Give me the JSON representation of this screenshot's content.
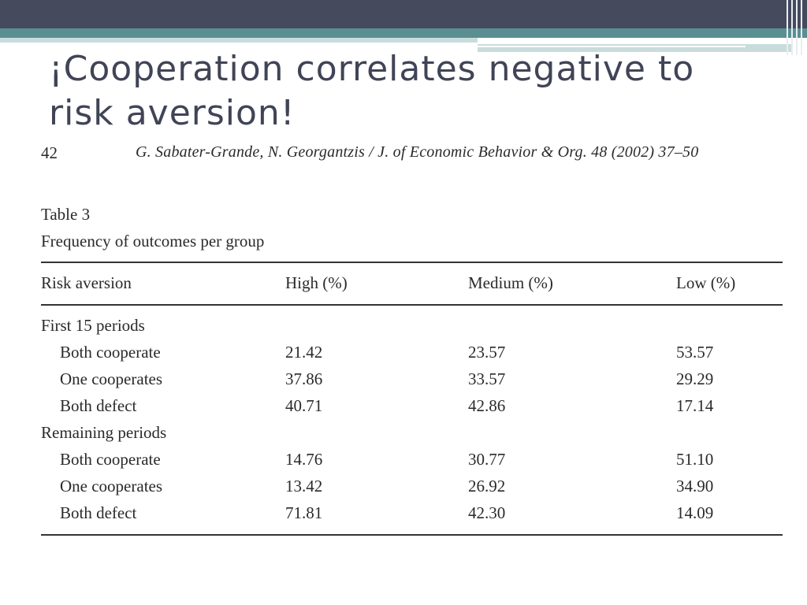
{
  "slide": {
    "title_line1": "¡Cooperation correlates negative to",
    "title_line2": "risk aversion!"
  },
  "scan": {
    "page_number": "42",
    "running_head": "G. Sabater-Grande, N. Georgantzis / J. of Economic Behavior & Org. 48 (2002) 37–50",
    "table_label": "Table 3",
    "table_caption": "Frequency of outcomes per group",
    "headers": [
      "Risk aversion",
      "High (%)",
      "Medium (%)",
      "Low (%)"
    ],
    "sections": [
      {
        "label": "First 15 periods",
        "rows": [
          {
            "outcome": "Both cooperate",
            "high": "21.42",
            "medium": "23.57",
            "low": "53.57"
          },
          {
            "outcome": "One cooperates",
            "high": "37.86",
            "medium": "33.57",
            "low": "29.29"
          },
          {
            "outcome": "Both defect",
            "high": "40.71",
            "medium": "42.86",
            "low": "17.14"
          }
        ]
      },
      {
        "label": "Remaining periods",
        "rows": [
          {
            "outcome": "Both cooperate",
            "high": "14.76",
            "medium": "30.77",
            "low": "51.10"
          },
          {
            "outcome": "One cooperates",
            "high": "13.42",
            "medium": "26.92",
            "low": "34.90"
          },
          {
            "outcome": "Both defect",
            "high": "71.81",
            "medium": "42.30",
            "low": "14.09"
          }
        ]
      }
    ]
  }
}
